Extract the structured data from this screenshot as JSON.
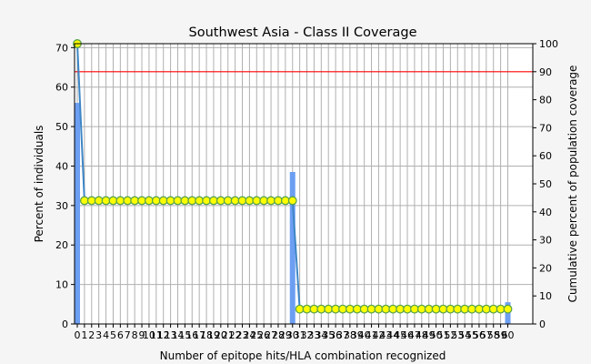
{
  "chart_data": {
    "type": "bar",
    "title": "Southwest Asia - Class II Coverage",
    "xlabel": "Number of epitope hits/HLA combination recognized",
    "ylabel": "Percent of individuals",
    "y2label": "Cumulative percent of population coverage",
    "x": [
      0,
      1,
      2,
      3,
      4,
      5,
      6,
      7,
      8,
      9,
      10,
      11,
      12,
      13,
      14,
      15,
      16,
      17,
      18,
      19,
      20,
      21,
      22,
      23,
      24,
      25,
      26,
      27,
      28,
      29,
      30,
      31,
      32,
      33,
      34,
      35,
      36,
      37,
      38,
      39,
      40,
      41,
      42,
      43,
      44,
      45,
      46,
      47,
      48,
      49,
      50,
      51,
      52,
      53,
      54,
      55,
      56,
      57,
      58,
      59,
      60
    ],
    "x_tick_labels": [
      "0",
      "1",
      "2",
      "3",
      "4",
      "5",
      "6",
      "7",
      "8",
      "9",
      "10",
      "11",
      "12",
      "13",
      "14",
      "15",
      "16",
      "17",
      "18",
      "19",
      "20",
      "21",
      "22",
      "23",
      "24",
      "25",
      "26",
      "27",
      "28",
      "29",
      "30",
      "31",
      "32",
      "33",
      "34",
      "35",
      "36",
      "37",
      "38",
      "39",
      "40",
      "41",
      "42",
      "43",
      "44",
      "45",
      "46",
      "47",
      "48",
      "49",
      "50",
      "51",
      "52",
      "53",
      "54",
      "55",
      "56",
      "57",
      "58",
      "59",
      "60"
    ],
    "ylim": [
      0,
      71
    ],
    "y_ticks": [
      0,
      10,
      20,
      30,
      40,
      50,
      60,
      70
    ],
    "y2lim": [
      0,
      100
    ],
    "y2_ticks": [
      0,
      10,
      20,
      30,
      40,
      50,
      60,
      70,
      80,
      90,
      100
    ],
    "reference_line_y2": 90,
    "grid": true,
    "series": [
      {
        "kind": "bar",
        "axis": "left",
        "values": [
          56,
          0,
          0,
          0,
          0,
          0,
          0,
          0,
          0,
          0,
          0,
          0,
          0,
          0,
          0,
          0,
          0,
          0,
          0,
          0,
          0,
          0,
          0,
          0,
          0,
          0,
          0,
          0,
          0,
          0,
          38.5,
          0,
          0,
          0,
          0,
          0,
          0,
          0,
          0,
          0,
          0,
          0,
          0,
          0,
          0,
          0,
          0,
          0,
          0,
          0,
          0,
          0,
          0,
          0,
          0,
          0,
          0,
          0,
          0,
          0,
          5.5
        ]
      },
      {
        "kind": "line",
        "axis": "right",
        "values": [
          100,
          44,
          44,
          44,
          44,
          44,
          44,
          44,
          44,
          44,
          44,
          44,
          44,
          44,
          44,
          44,
          44,
          44,
          44,
          44,
          44,
          44,
          44,
          44,
          44,
          44,
          44,
          44,
          44,
          44,
          44,
          5.3,
          5.3,
          5.3,
          5.3,
          5.3,
          5.3,
          5.3,
          5.3,
          5.3,
          5.3,
          5.3,
          5.3,
          5.3,
          5.3,
          5.3,
          5.3,
          5.3,
          5.3,
          5.3,
          5.3,
          5.3,
          5.3,
          5.3,
          5.3,
          5.3,
          5.3,
          5.3,
          5.3,
          5.3,
          5.3
        ]
      }
    ],
    "colors": {
      "bar": "#6c9ef2",
      "line": "#3d86c6",
      "marker_fill": "#ffff00",
      "marker_edge": "#5aa24a",
      "reference_line": "#ff0000",
      "grid": "#b0b0b0",
      "plot_bg": "#ffffff",
      "page_bg": "#f5f5f5"
    }
  }
}
